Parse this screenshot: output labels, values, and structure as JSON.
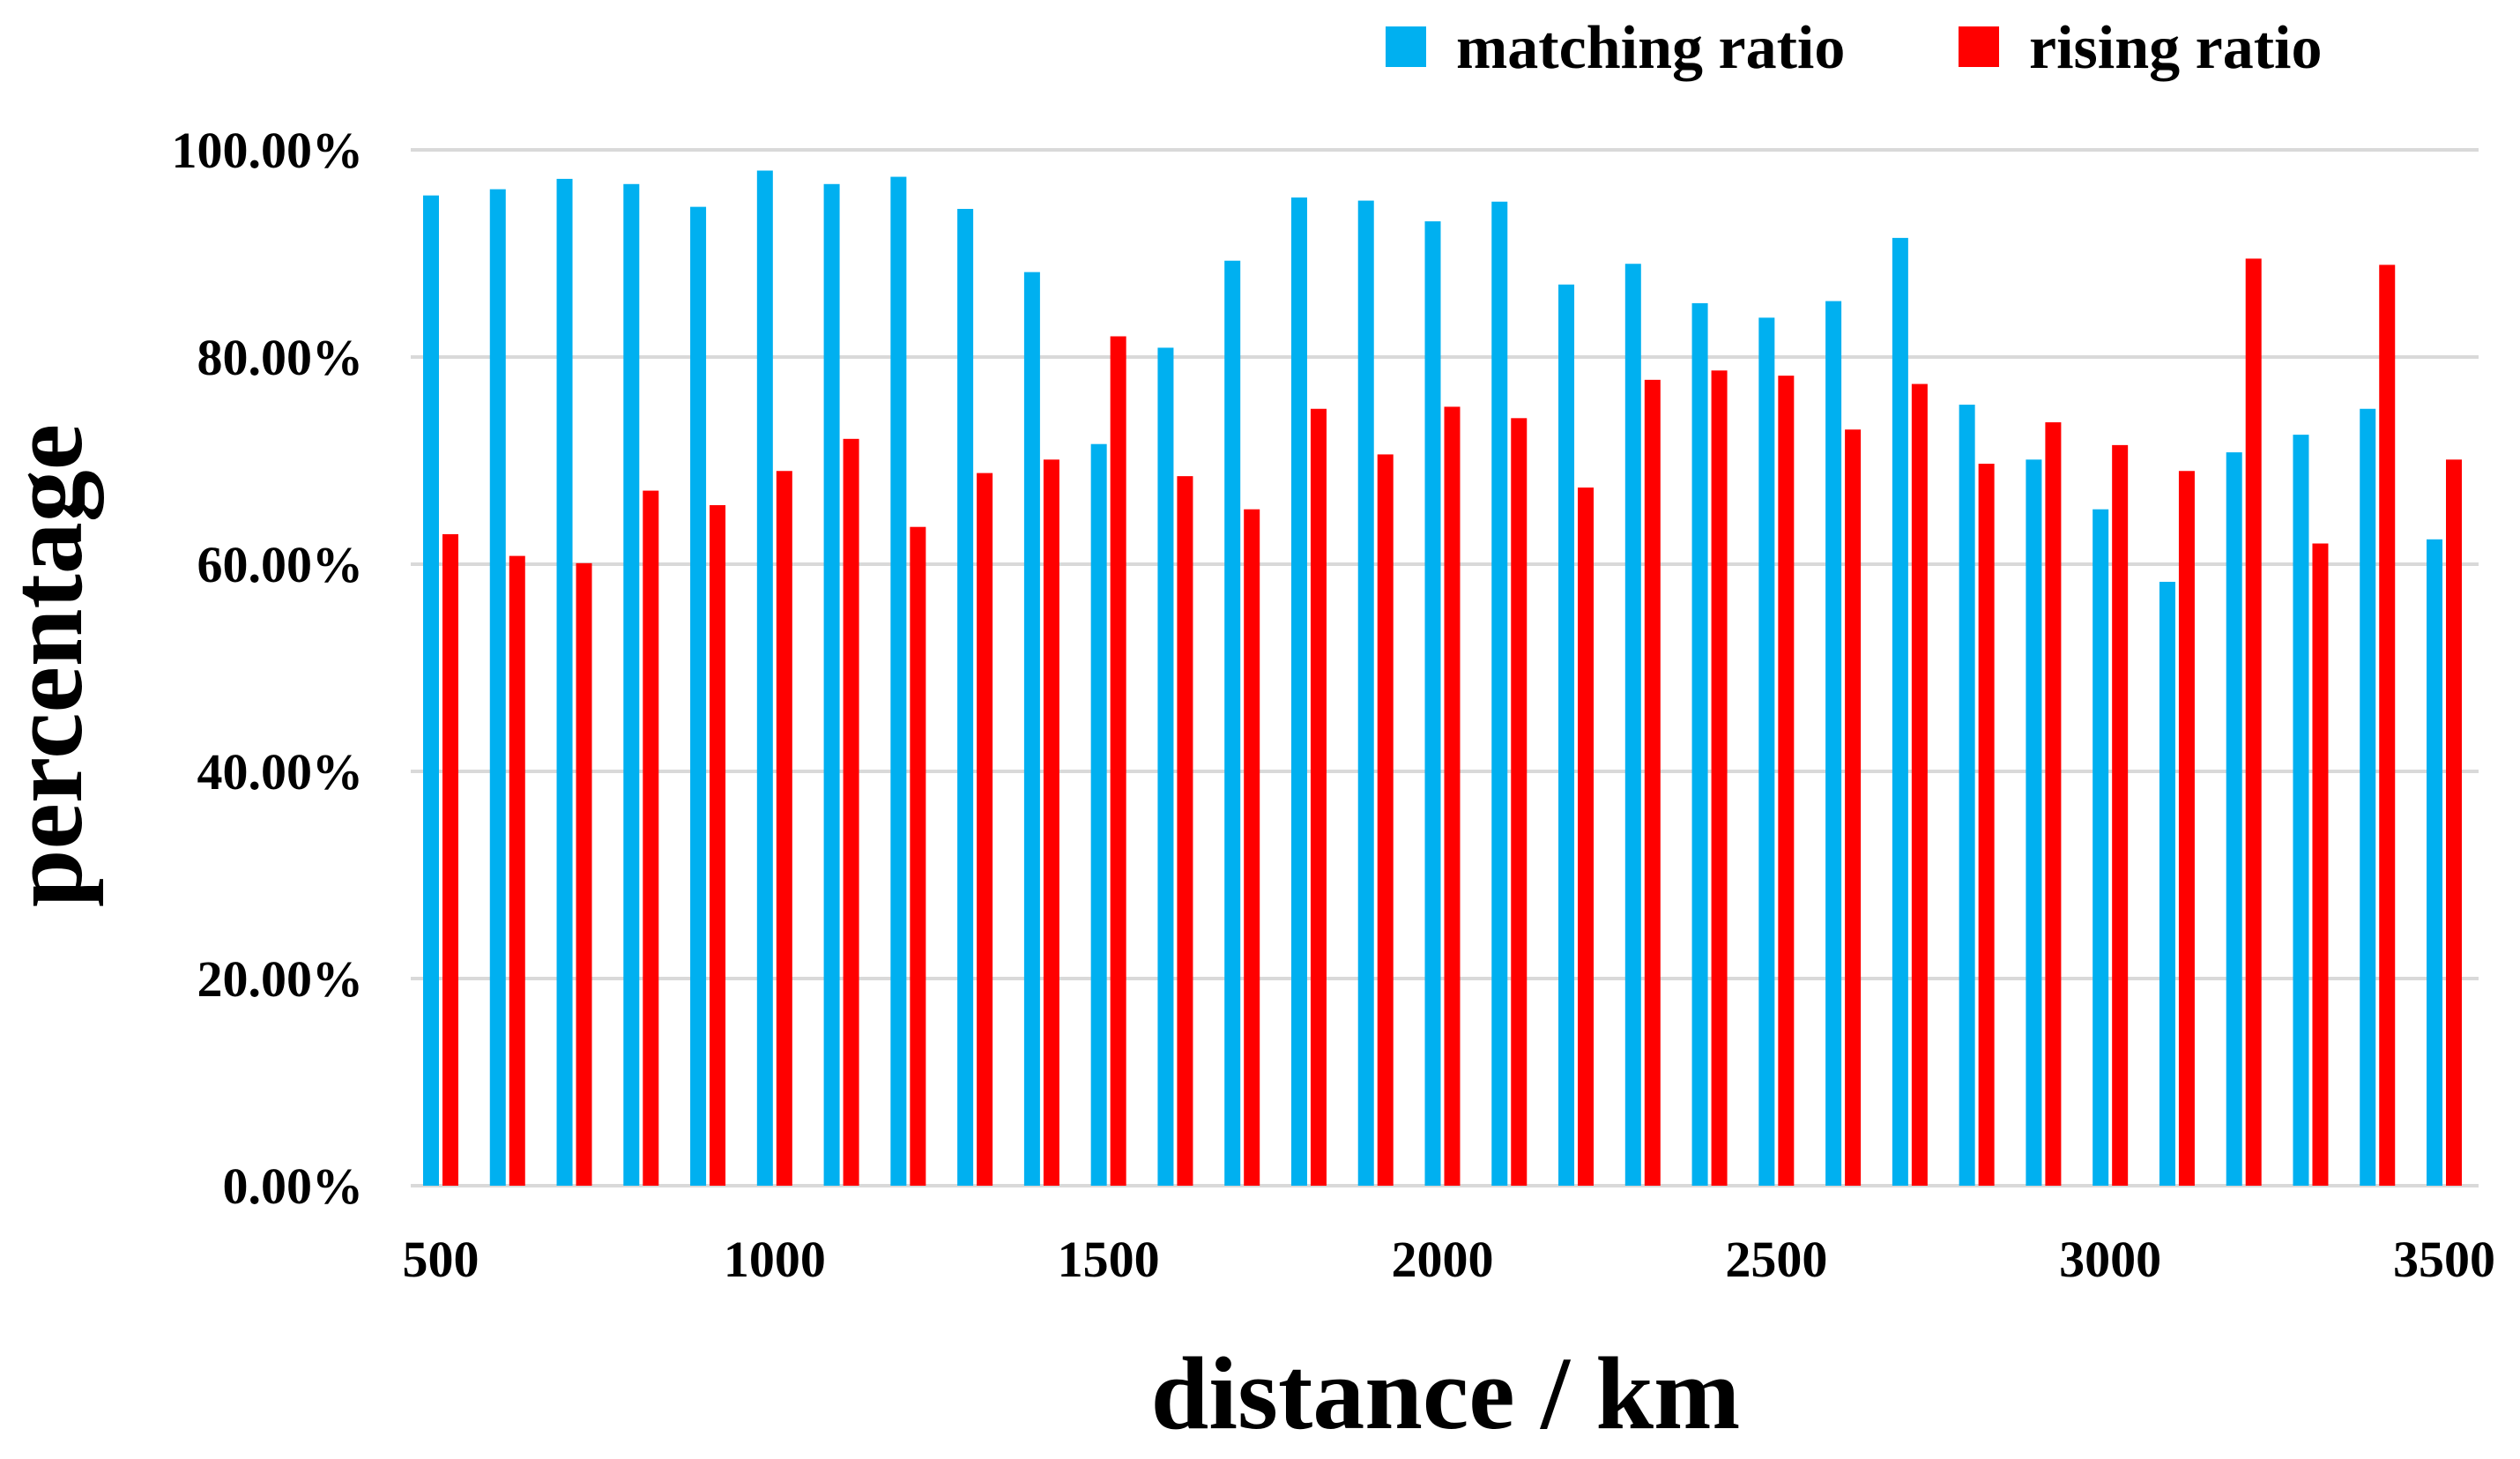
{
  "chart_data": {
    "type": "bar",
    "title": "",
    "xlabel": "distance / km",
    "ylabel": "percentage",
    "ylim": [
      0,
      100
    ],
    "yticks": [
      "0.00%",
      "20.00%",
      "40.00%",
      "60.00%",
      "80.00%",
      "100.00%"
    ],
    "ytick_values": [
      0,
      20,
      40,
      60,
      80,
      100
    ],
    "xticks": [
      "500",
      "1000",
      "1500",
      "2000",
      "2500",
      "3000",
      "3500"
    ],
    "xtick_values": [
      500,
      1000,
      1500,
      2000,
      2500,
      3000,
      3500
    ],
    "xlim": [
      500,
      3500
    ],
    "grid": true,
    "legend_position": "top-right",
    "categories": [
      500,
      600,
      700,
      800,
      900,
      1000,
      1100,
      1200,
      1300,
      1400,
      1500,
      1600,
      1700,
      1800,
      1900,
      2000,
      2100,
      2200,
      2300,
      2400,
      2500,
      2600,
      2700,
      2800,
      2900,
      3000,
      3100,
      3200,
      3300,
      3400,
      3500
    ],
    "series": [
      {
        "name": "matching ratio",
        "color": "#00b0f0",
        "values": [
          95.6,
          96.2,
          97.2,
          96.7,
          94.5,
          98.0,
          96.7,
          97.4,
          94.3,
          88.2,
          71.6,
          80.9,
          89.3,
          95.4,
          95.1,
          93.1,
          95.0,
          87.0,
          89.0,
          85.2,
          83.8,
          85.4,
          91.5,
          75.4,
          70.1,
          65.3,
          58.3,
          70.8,
          72.5,
          75.0,
          62.4
        ]
      },
      {
        "name": "rising ratio",
        "color": "#ff0000",
        "values": [
          62.9,
          60.8,
          60.1,
          67.1,
          65.7,
          69.0,
          72.1,
          63.6,
          68.8,
          70.1,
          82.0,
          68.5,
          65.3,
          75.0,
          70.6,
          75.2,
          74.1,
          67.4,
          77.8,
          78.7,
          78.2,
          73.0,
          77.4,
          69.7,
          73.7,
          71.5,
          69.0,
          89.5,
          62.0,
          88.9,
          70.1
        ]
      }
    ]
  }
}
